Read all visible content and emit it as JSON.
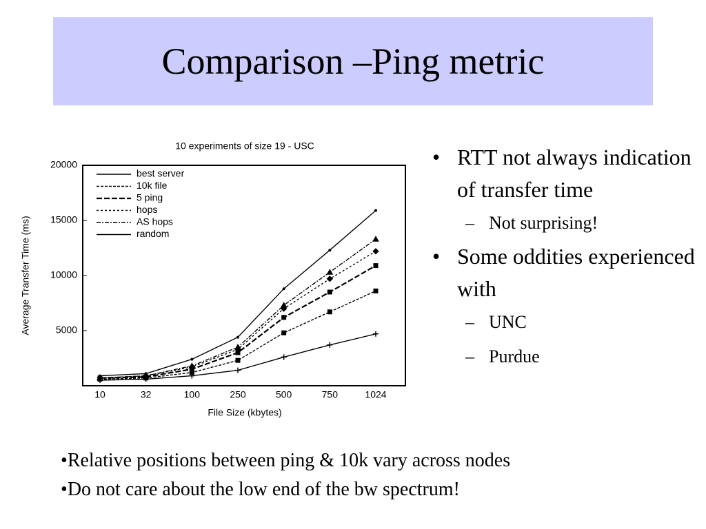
{
  "header": {
    "title": "Comparison –Ping metric"
  },
  "chart_data": {
    "type": "line",
    "title": "10 experiments of size 19 -  USC",
    "x_label": "File Size (kbytes)",
    "y_label": "Average Transfer Time (ms)",
    "categories": [
      "10",
      "32",
      "100",
      "250",
      "500",
      "750",
      "1024"
    ],
    "ylim": [
      0,
      20000
    ],
    "yticks": [
      5000,
      10000,
      15000,
      20000
    ],
    "legend": "upper-left",
    "series": [
      {
        "name": "best server",
        "color": "#000000",
        "dash": "solid",
        "marker": "plus",
        "values": [
          500,
          600,
          900,
          1400,
          2600,
          3700,
          4700
        ]
      },
      {
        "name": "10k file",
        "color": "#000000",
        "dash": "4 2",
        "marker": "square",
        "values": [
          600,
          700,
          1200,
          2300,
          4800,
          6700,
          8600
        ]
      },
      {
        "name": "5 ping",
        "color": "#000000",
        "dash": "8 3",
        "marker": "square",
        "values": [
          700,
          800,
          1500,
          3000,
          6200,
          8500,
          10900
        ]
      },
      {
        "name": "hops",
        "color": "#000000",
        "dash": "3 3",
        "marker": "diamond",
        "values": [
          700,
          900,
          1700,
          3300,
          7000,
          9700,
          12200
        ]
      },
      {
        "name": "AS hops",
        "color": "#000000",
        "dash": "6 2 2 2",
        "marker": "triangle",
        "values": [
          700,
          900,
          1800,
          3500,
          7300,
          10300,
          13300
        ]
      },
      {
        "name": "random",
        "color": "#000000",
        "dash": "solid",
        "marker": "none",
        "values": [
          900,
          1100,
          2400,
          4400,
          8800,
          12300,
          15900
        ]
      }
    ]
  },
  "side_bullets": [
    {
      "text": "RTT not always indication of transfer time",
      "sub": [
        "Not surprising!"
      ]
    },
    {
      "text": "Some oddities experienced with",
      "sub": [
        "UNC",
        "Purdue"
      ]
    }
  ],
  "bottom_bullets": [
    "Relative positions between ping & 10k vary across nodes",
    "Do not care about the low end of the bw spectrum!"
  ]
}
